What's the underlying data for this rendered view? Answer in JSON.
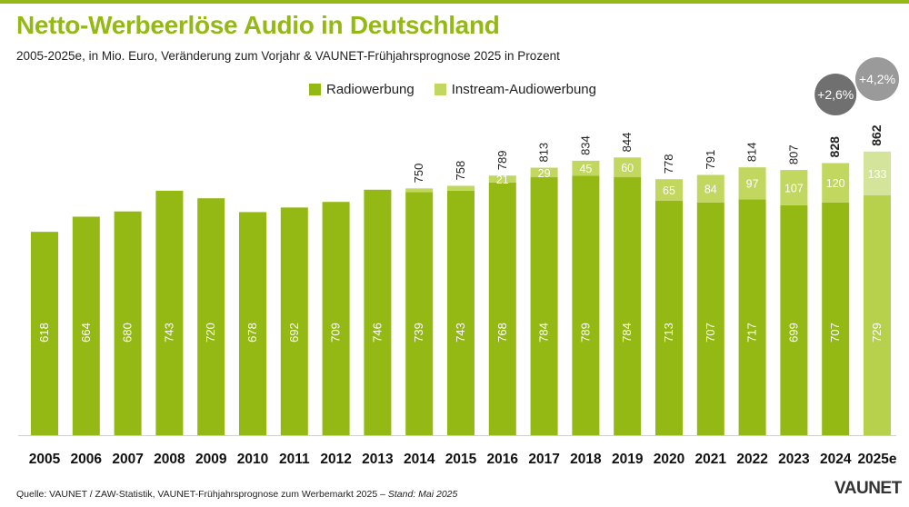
{
  "title": "Netto-Werbeerlöse Audio in Deutschland",
  "subtitle": "2005-2025e, in Mio. Euro, Veränderung zum Vorjahr & VAUNET-Frühjahrsprognose 2025 in Prozent",
  "legend": {
    "radio": "Radiowerbung",
    "instream": "Instream-Audiowerbung"
  },
  "source_text": "Quelle: VAUNET / ZAW-Statistik, VAUNET-Frühjahrsprognose zum Werbemarkt 2025 – ",
  "source_date": "Stand: Mai 2025",
  "logo": {
    "main": "VAUNET"
  },
  "colors": {
    "radio": "#94b814",
    "instream": "#c1d75f",
    "radio_forecast": "#b8d14c",
    "instream_forecast": "#d4e49a",
    "bubble_2024": "#707070",
    "bubble_2025": "#9a9a9a"
  },
  "chart_data": {
    "type": "bar",
    "stacked": true,
    "title": "Netto-Werbeerlöse Audio in Deutschland",
    "categories": [
      "2005",
      "2006",
      "2007",
      "2008",
      "2009",
      "2010",
      "2011",
      "2012",
      "2013",
      "2014",
      "2015",
      "2016",
      "2017",
      "2018",
      "2019",
      "2020",
      "2021",
      "2022",
      "2023",
      "2024",
      "2025e"
    ],
    "series": [
      {
        "name": "Radiowerbung",
        "values": [
          618,
          664,
          680,
          743,
          720,
          678,
          692,
          709,
          746,
          739,
          743,
          768,
          784,
          789,
          784,
          713,
          707,
          717,
          699,
          707,
          729
        ]
      },
      {
        "name": "Instream-Audiowerbung",
        "values": [
          null,
          null,
          null,
          null,
          null,
          null,
          null,
          null,
          null,
          11,
          15,
          21,
          29,
          45,
          60,
          65,
          84,
          97,
          107,
          120,
          133
        ]
      }
    ],
    "instream_labels": [
      "",
      "",
      "",
      "",
      "",
      "",
      "",
      "",
      "",
      "",
      "",
      "21",
      "29",
      "45",
      "60",
      "65",
      "84",
      "97",
      "107",
      "120",
      "133"
    ],
    "totals": [
      "",
      "",
      "",
      "",
      "",
      "",
      "",
      "",
      "",
      "750",
      "758",
      "789",
      "813",
      "834",
      "844",
      "778",
      "791",
      "814",
      "807",
      "828",
      "862"
    ],
    "bold_totals": [
      "2024",
      "2025e"
    ],
    "changes": [
      {
        "label": "+2,6%",
        "category": "2024"
      },
      {
        "label": "+4,2%",
        "category": "2025e"
      }
    ],
    "ylim": [
      0,
      870
    ],
    "xlabel": "",
    "ylabel": ""
  }
}
